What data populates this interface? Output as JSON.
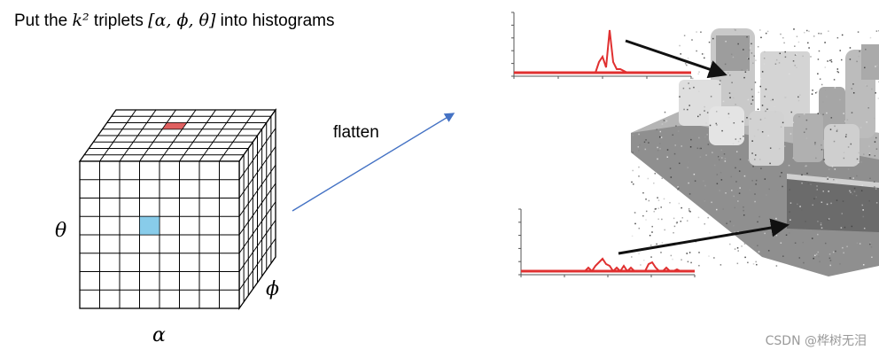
{
  "heading": {
    "prefix": "Put the ",
    "k_squared": "k²",
    "middle": " triplets ",
    "triplet": "[α, ϕ, θ]",
    "suffix": " into histograms"
  },
  "cube": {
    "vertical_axis": "θ",
    "depth_axis": "ϕ",
    "horizontal_axis": "α",
    "highlight_top_color": "#e06060",
    "highlight_front_color": "#88ccea"
  },
  "arrow_label": "flatten",
  "histogram_color": "#e03030",
  "watermark": "CSDN @桦树无泪"
}
